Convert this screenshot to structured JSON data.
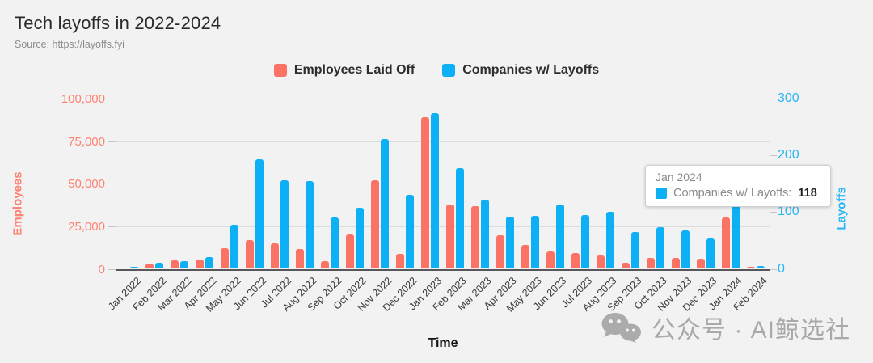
{
  "header": {
    "title": "Tech layoffs in 2022-2024",
    "source": "Source: https://layoffs.fyi"
  },
  "colors": {
    "employees": "#fa7365",
    "companies": "#0db0f4",
    "left_axis_text": "#ff8272",
    "right_axis_text": "#29b6f6",
    "background": "#f2f2f2"
  },
  "legend": {
    "items": [
      {
        "label": "Employees Laid Off",
        "color": "#fa7365"
      },
      {
        "label": "Companies w/ Layoffs",
        "color": "#0db0f4"
      }
    ]
  },
  "axes": {
    "left": {
      "title": "Employees",
      "ticks": [
        "100,000",
        "75,000",
        "50,000",
        "25,000",
        "0"
      ],
      "max": 100000
    },
    "right": {
      "title": "Layoffs",
      "ticks": [
        "300",
        "200",
        "100",
        "0"
      ],
      "max": 300
    },
    "x": {
      "title": "Time"
    }
  },
  "chart_data": {
    "type": "bar",
    "title": "Tech layoffs in 2022-2024",
    "xlabel": "Time",
    "ylabel_left": "Employees",
    "ylabel_right": "Layoffs",
    "ylim_left": [
      0,
      100000
    ],
    "ylim_right": [
      0,
      300
    ],
    "grid": true,
    "legend_position": "top",
    "categories": [
      "Jan 2022",
      "Feb 2022",
      "Mar 2022",
      "Apr 2022",
      "May 2022",
      "Jun 2022",
      "Jul 2022",
      "Aug 2022",
      "Sep 2022",
      "Oct 2022",
      "Nov 2022",
      "Dec 2022",
      "Jan 2023",
      "Feb 2023",
      "Mar 2023",
      "Apr 2023",
      "May 2023",
      "Jun 2023",
      "Jul 2023",
      "Aug 2023",
      "Sep 2023",
      "Oct 2023",
      "Nov 2023",
      "Dec 2023",
      "Jan 2024",
      "Feb 2024"
    ],
    "series": [
      {
        "name": "Employees Laid Off",
        "axis": "left",
        "color": "#fa7365",
        "values": [
          500,
          3000,
          5100,
          5600,
          12000,
          17000,
          15000,
          11500,
          4700,
          20000,
          52000,
          9000,
          89000,
          38000,
          37000,
          19500,
          14000,
          10000,
          9500,
          8000,
          3500,
          6500,
          6500,
          6000,
          30000,
          1000
        ]
      },
      {
        "name": "Companies w/ Layoffs",
        "axis": "right",
        "color": "#0db0f4",
        "values": [
          4,
          11,
          14,
          20,
          77,
          193,
          156,
          154,
          90,
          108,
          229,
          130,
          274,
          177,
          122,
          92,
          93,
          113,
          95,
          101,
          65,
          74,
          68,
          54,
          118,
          5
        ]
      }
    ]
  },
  "tooltip": {
    "title": "Jan 2024",
    "series_label": "Companies w/ Layoffs:",
    "value": "118",
    "color": "#0db0f4"
  },
  "watermark": {
    "icon": "wechat-icon",
    "text": "公众号 · AI鲸选社"
  }
}
